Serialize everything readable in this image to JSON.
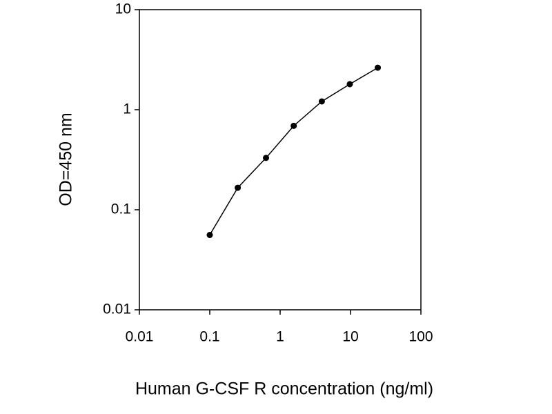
{
  "chart_data": {
    "type": "line",
    "x_label": "Human G-CSF R concentration (ng/ml)",
    "y_label": "OD=450 nm",
    "x": [
      0.1,
      0.25,
      0.63,
      1.56,
      3.91,
      9.77,
      24.4
    ],
    "series": [
      {
        "color": "#000000",
        "values": [
          0.056,
          0.166,
          0.33,
          0.69,
          1.21,
          1.8,
          2.63
        ]
      }
    ],
    "xlim": [
      0.01,
      100
    ],
    "xticks": [
      0.01,
      0.1,
      1,
      10,
      100
    ],
    "ylim": [
      0.01,
      10
    ],
    "yticks": [
      0.01,
      0.1,
      1,
      10
    ],
    "xscale": "log",
    "yscale": "log",
    "grid": false
  }
}
